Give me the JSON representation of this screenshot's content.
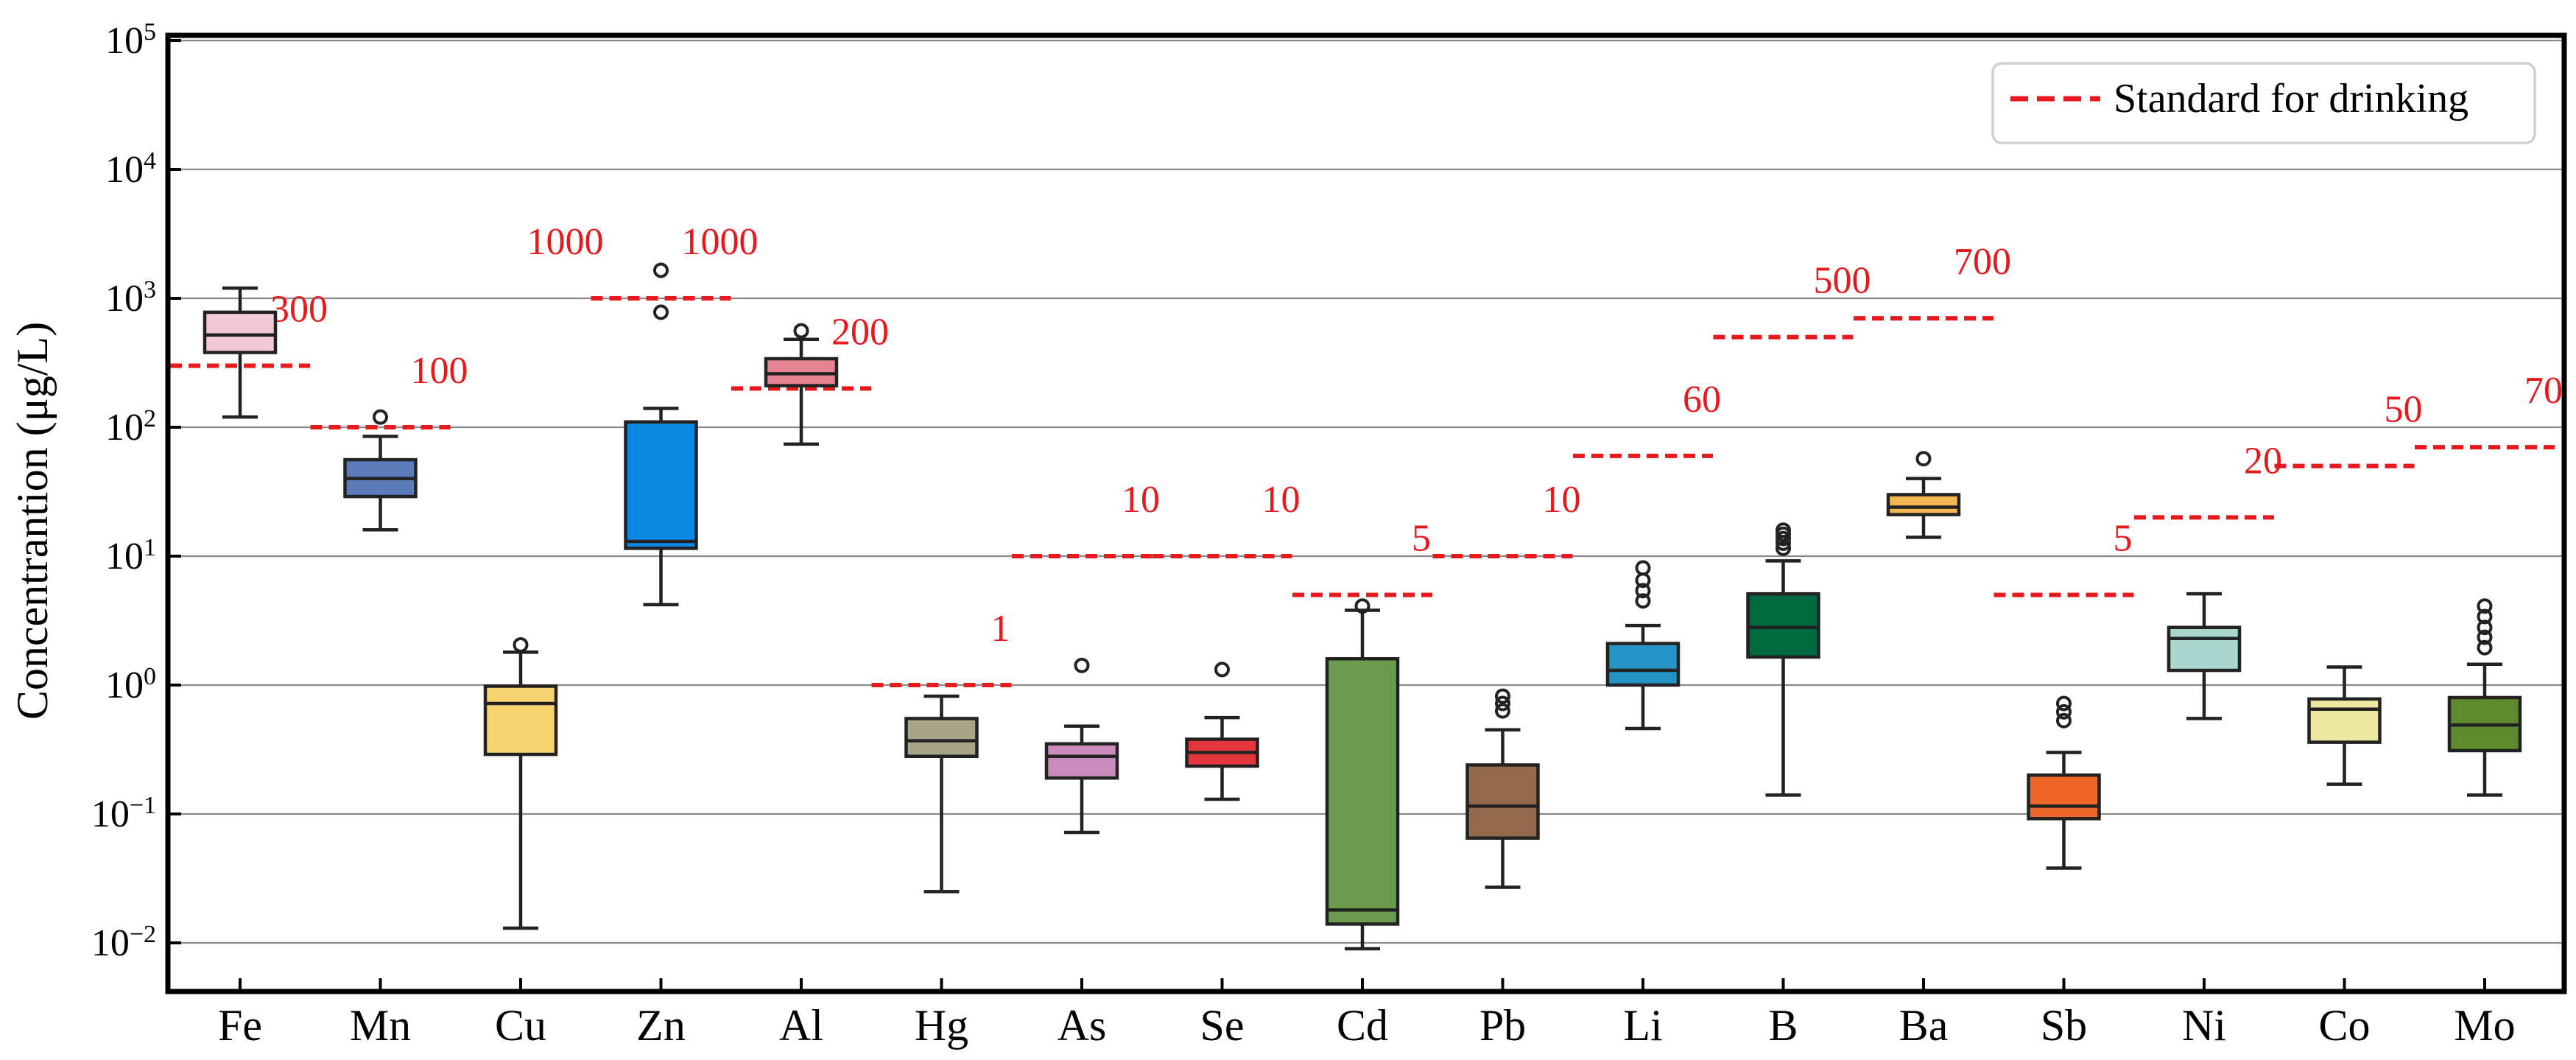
{
  "chart_data": {
    "type": "box",
    "title": "",
    "xlabel": "",
    "ylabel": "Concentrantion (μg/L)",
    "yscale": "log",
    "ylim": [
      0.006,
      100000
    ],
    "yticks": [
      {
        "value": 0.01,
        "base": "10",
        "exp": "−2"
      },
      {
        "value": 0.1,
        "base": "10",
        "exp": "−1"
      },
      {
        "value": 1,
        "base": "10",
        "exp": "0"
      },
      {
        "value": 10,
        "base": "10",
        "exp": "1"
      },
      {
        "value": 100,
        "base": "10",
        "exp": "2"
      },
      {
        "value": 1000,
        "base": "10",
        "exp": "3"
      },
      {
        "value": 10000,
        "base": "10",
        "exp": "4"
      },
      {
        "value": 100000,
        "base": "10",
        "exp": "5"
      }
    ],
    "grid": "horizontal",
    "legend": {
      "position": "top-right",
      "label": "Standard for drinking",
      "style": "dashed",
      "color": "#e8191d"
    },
    "categories": [
      "Fe",
      "Mn",
      "Cu",
      "Zn",
      "Al",
      "Hg",
      "As",
      "Se",
      "Cd",
      "Pb",
      "Li",
      "B",
      "Ba",
      "Sb",
      "Ni",
      "Co",
      "Mo"
    ],
    "boxes": [
      {
        "name": "Fe",
        "color": "#f2c9d6",
        "whislo": 120,
        "q1": 380,
        "med": 520,
        "q3": 780,
        "whishi": 1200,
        "fliers": []
      },
      {
        "name": "Mn",
        "color": "#5b7cb8",
        "whislo": 16,
        "q1": 29,
        "med": 40,
        "q3": 56,
        "whishi": 85,
        "fliers": [
          120
        ]
      },
      {
        "name": "Cu",
        "color": "#f6d36e",
        "whislo": 0.013,
        "q1": 0.29,
        "med": 0.72,
        "q3": 0.98,
        "whishi": 1.8,
        "fliers": [
          2.05
        ]
      },
      {
        "name": "Zn",
        "color": "#0b88e2",
        "whislo": 4.2,
        "q1": 11.5,
        "med": 13,
        "q3": 110,
        "whishi": 140,
        "fliers": [
          780,
          1650
        ]
      },
      {
        "name": "Al",
        "color": "#e68391",
        "whislo": 74,
        "q1": 210,
        "med": 260,
        "q3": 340,
        "whishi": 480,
        "fliers": [
          560
        ]
      },
      {
        "name": "Hg",
        "color": "#a8a487",
        "whislo": 0.025,
        "q1": 0.28,
        "med": 0.37,
        "q3": 0.55,
        "whishi": 0.82,
        "fliers": []
      },
      {
        "name": "As",
        "color": "#c98bb9",
        "whislo": 0.072,
        "q1": 0.19,
        "med": 0.28,
        "q3": 0.35,
        "whishi": 0.48,
        "fliers": [
          1.42
        ]
      },
      {
        "name": "Se",
        "color": "#e2383d",
        "whislo": 0.13,
        "q1": 0.235,
        "med": 0.3,
        "q3": 0.38,
        "whishi": 0.56,
        "fliers": [
          1.32
        ]
      },
      {
        "name": "Cd",
        "color": "#6a9b4f",
        "whislo": 0.009,
        "q1": 0.014,
        "med": 0.018,
        "q3": 1.6,
        "whishi": 3.8,
        "fliers": [
          4.1
        ]
      },
      {
        "name": "Pb",
        "color": "#946a4f",
        "whislo": 0.027,
        "q1": 0.065,
        "med": 0.115,
        "q3": 0.24,
        "whishi": 0.45,
        "fliers": [
          0.63,
          0.72,
          0.82
        ]
      },
      {
        "name": "Li",
        "color": "#2693c6",
        "whislo": 0.46,
        "q1": 1.0,
        "med": 1.3,
        "q3": 2.1,
        "whishi": 2.9,
        "fliers": [
          4.5,
          5.4,
          6.5,
          8.1
        ]
      },
      {
        "name": "B",
        "color": "#006940",
        "whislo": 0.14,
        "q1": 1.65,
        "med": 2.8,
        "q3": 5.1,
        "whishi": 9.2,
        "fliers": [
          11.5,
          12.6,
          13.7,
          14.8,
          15.9
        ]
      },
      {
        "name": "Ba",
        "color": "#f1b64e",
        "whislo": 14,
        "q1": 21,
        "med": 24,
        "q3": 30,
        "whishi": 40,
        "fliers": [
          57
        ]
      },
      {
        "name": "Sb",
        "color": "#ef6527",
        "whislo": 0.038,
        "q1": 0.092,
        "med": 0.115,
        "q3": 0.2,
        "whishi": 0.3,
        "fliers": [
          0.53,
          0.62,
          0.72
        ]
      },
      {
        "name": "Ni",
        "color": "#a9d7cd",
        "whislo": 0.55,
        "q1": 1.3,
        "med": 2.3,
        "q3": 2.8,
        "whishi": 5.1,
        "fliers": []
      },
      {
        "name": "Co",
        "color": "#ece8a0",
        "whislo": 0.17,
        "q1": 0.36,
        "med": 0.65,
        "q3": 0.78,
        "whishi": 1.38,
        "fliers": []
      },
      {
        "name": "Mo",
        "color": "#5e8a2c",
        "whislo": 0.14,
        "q1": 0.31,
        "med": 0.49,
        "q3": 0.8,
        "whishi": 1.45,
        "fliers": [
          1.95,
          2.35,
          2.8,
          3.4,
          4.1
        ]
      }
    ],
    "standards": [
      {
        "element": "Fe",
        "value": 300,
        "label": "300"
      },
      {
        "element": "Mn",
        "value": 100,
        "label": "100"
      },
      {
        "element": "Zn",
        "value": 1000,
        "label": "1000"
      },
      {
        "element": "Al",
        "value": 200,
        "label": "200"
      },
      {
        "element": "Hg",
        "value": 1,
        "label": "1"
      },
      {
        "element": "As",
        "value": 10,
        "label": "10"
      },
      {
        "element": "Se",
        "value": 10,
        "label": "10"
      },
      {
        "element": "Cd",
        "value": 5,
        "label": "5"
      },
      {
        "element": "Pb",
        "value": 10,
        "label": "10"
      },
      {
        "element": "Li",
        "value": 60,
        "label": "60"
      },
      {
        "element": "B",
        "value": 500,
        "label": "500"
      },
      {
        "element": "Ba",
        "value": 700,
        "label": "700"
      },
      {
        "element": "Sb",
        "value": 5,
        "label": "5"
      },
      {
        "element": "Ni",
        "value": 20,
        "label": "20"
      },
      {
        "element": "Co",
        "value": 50,
        "label": "50"
      },
      {
        "element": "Mo",
        "value": 70,
        "label": "70"
      }
    ],
    "extra_labels": [
      {
        "label": "1000"
      }
    ]
  }
}
